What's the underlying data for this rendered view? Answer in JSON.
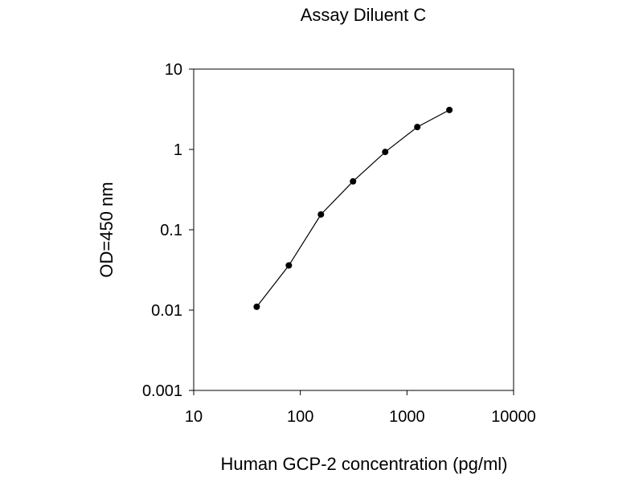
{
  "chart_data": {
    "type": "line",
    "title": "Assay Diluent C",
    "xlabel": "Human GCP-2 concentration (pg/ml)",
    "ylabel": "OD=450 nm",
    "x_scale": "log",
    "y_scale": "log",
    "xlim": [
      10,
      10000
    ],
    "ylim": [
      0.001,
      10
    ],
    "x_ticks": [
      10,
      100,
      1000,
      10000
    ],
    "x_tick_labels": [
      "10",
      "100",
      "1000",
      "10000"
    ],
    "y_ticks": [
      0.001,
      0.01,
      0.1,
      1,
      10
    ],
    "y_tick_labels": [
      "0.001",
      "0.01",
      "0.1",
      "1",
      "10"
    ],
    "grid": false,
    "legend": "none",
    "series": [
      {
        "x": [
          39,
          78,
          156,
          312,
          625,
          1250,
          2500
        ],
        "y": [
          0.011,
          0.036,
          0.155,
          0.4,
          0.93,
          1.9,
          3.1
        ]
      }
    ],
    "colors": {
      "line": "#000000",
      "marker": "#000000",
      "frame": "#000000"
    }
  }
}
